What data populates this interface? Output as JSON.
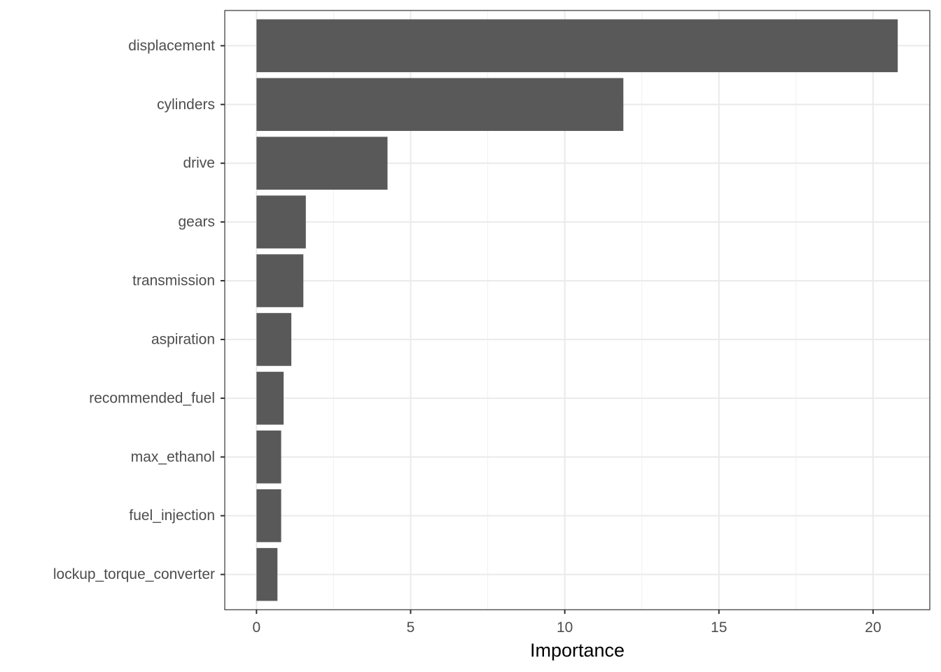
{
  "chart_data": {
    "type": "bar",
    "orientation": "horizontal",
    "title": "",
    "xlabel": "Importance",
    "ylabel": "",
    "categories": [
      "displacement",
      "cylinders",
      "drive",
      "gears",
      "transmission",
      "aspiration",
      "recommended_fuel",
      "max_ethanol",
      "fuel_injection",
      "lockup_torque_converter"
    ],
    "values": [
      20.8,
      11.9,
      4.25,
      1.6,
      1.52,
      1.13,
      0.88,
      0.8,
      0.8,
      0.68
    ],
    "xlim": [
      -1.03,
      21.84
    ],
    "x_ticks": [
      0,
      5,
      10,
      15,
      20
    ],
    "x_tick_labels": [
      "0",
      "5",
      "10",
      "15",
      "20"
    ],
    "grid": true,
    "legend": "none",
    "colors": {
      "bar": "#595959",
      "grid_major": "#ebebeb",
      "grid_minor": "#f2f2f2",
      "panel_border": "#333333",
      "tick_text": "#4d4d4d",
      "title_text": "#000000"
    }
  }
}
